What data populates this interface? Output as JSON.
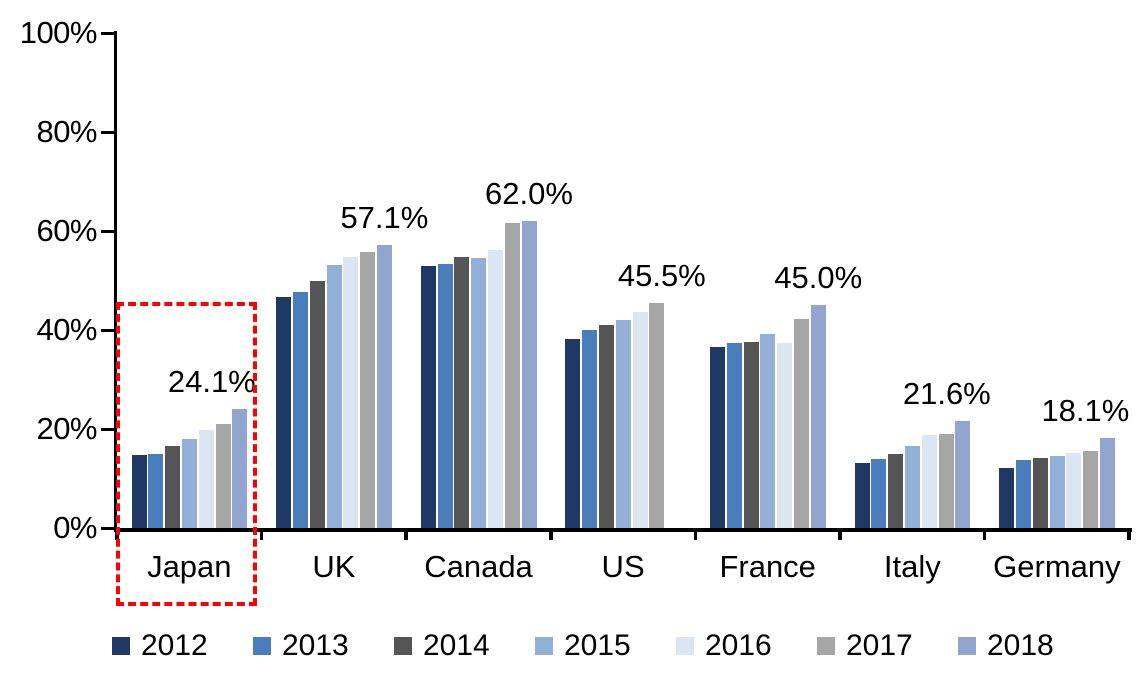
{
  "chart_data": {
    "type": "bar",
    "title": "",
    "subtitle": "",
    "xlabel": "",
    "ylabel": "",
    "unit": "%",
    "ylim": [
      0,
      100
    ],
    "grid": false,
    "categories": [
      "Japan",
      "UK",
      "Canada",
      "US",
      "France",
      "Italy",
      "Germany"
    ],
    "series": [
      {
        "name": "2012",
        "color": "#1F3864",
        "values": [
          14.8,
          46.6,
          52.9,
          38.2,
          36.5,
          13.1,
          12.2
        ]
      },
      {
        "name": "2013",
        "color": "#4A7DBB",
        "values": [
          15.0,
          47.6,
          53.3,
          40.0,
          37.4,
          13.9,
          13.7
        ]
      },
      {
        "name": "2014",
        "color": "#555555",
        "values": [
          16.5,
          49.8,
          54.8,
          41.0,
          37.5,
          15.0,
          14.2
        ]
      },
      {
        "name": "2015",
        "color": "#92AFD7",
        "values": [
          18.0,
          53.2,
          54.6,
          42.0,
          39.1,
          16.6,
          14.5
        ]
      },
      {
        "name": "2016",
        "color": "#DCE6F2",
        "values": [
          19.8,
          54.8,
          56.2,
          43.6,
          37.3,
          18.7,
          15.2
        ]
      },
      {
        "name": "2017",
        "color": "#A6A6A6",
        "values": [
          21.0,
          55.8,
          61.6,
          45.5,
          42.2,
          18.9,
          15.6
        ]
      },
      {
        "name": "2018",
        "color": "#92A5CF",
        "values": [
          24.1,
          57.1,
          62.0,
          null,
          45.0,
          21.6,
          18.1
        ]
      }
    ],
    "data_labels": [
      {
        "category": "Japan",
        "text": "24.1%"
      },
      {
        "category": "UK",
        "text": "57.1%"
      },
      {
        "category": "Canada",
        "text": "62.0%"
      },
      {
        "category": "US",
        "text": "45.5%"
      },
      {
        "category": "France",
        "text": "45.0%"
      },
      {
        "category": "Italy",
        "text": "21.6%"
      },
      {
        "category": "Germany",
        "text": "18.1%"
      }
    ],
    "y_axis_ticks": [
      "100%",
      "80%",
      "60%",
      "40%",
      "20%",
      "0%"
    ],
    "legend": {
      "position": "bottom",
      "entries": [
        "2012",
        "2013",
        "2014",
        "2015",
        "2016",
        "2017",
        "2018"
      ]
    },
    "highlight": {
      "shape": "dashed-rectangle",
      "color": "#FF0000",
      "category": "Japan"
    }
  }
}
